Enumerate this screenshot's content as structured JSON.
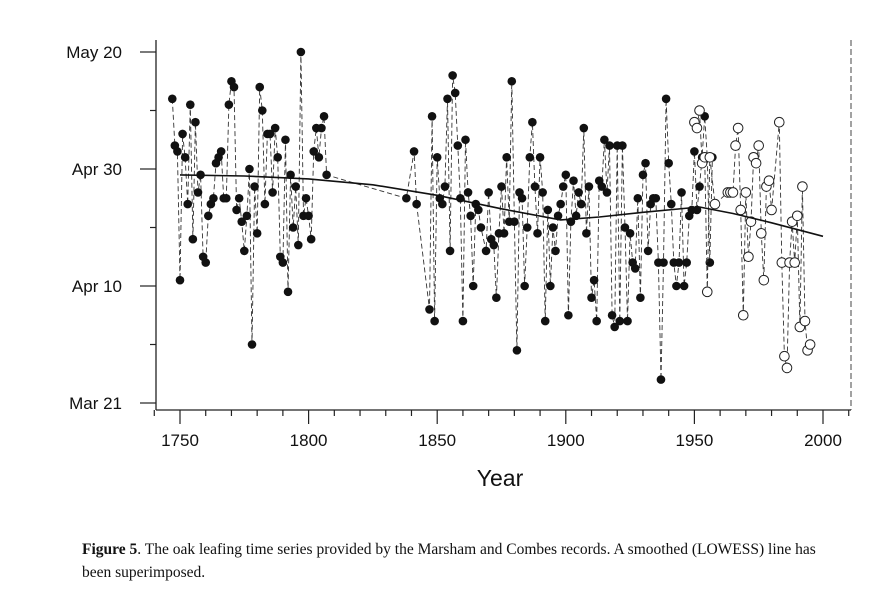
{
  "chart_data": {
    "type": "scatter",
    "title": "",
    "xlabel": "Year",
    "ylabel": "",
    "xlim": [
      1740,
      2010
    ],
    "ylim": [
      80,
      141
    ],
    "y_units": "day of year (Mar 21 = 80, Apr 10 = 100, Apr 30 = 120, May 20 = 140)",
    "x_ticks": [
      1750,
      1800,
      1850,
      1900,
      1950,
      2000
    ],
    "y_ticks": [
      {
        "value": 80,
        "label": "Mar 21"
      },
      {
        "value": 100,
        "label": "Apr 10"
      },
      {
        "value": 120,
        "label": "Apr 30"
      },
      {
        "value": 140,
        "label": "May 20"
      }
    ],
    "grid": false,
    "series": [
      {
        "name": "Marsham",
        "marker": "filled-circle",
        "line": "dashed",
        "points": [
          [
            1747,
            132
          ],
          [
            1748,
            124
          ],
          [
            1749,
            123
          ],
          [
            1750,
            101
          ],
          [
            1751,
            126
          ],
          [
            1752,
            122
          ],
          [
            1753,
            114
          ],
          [
            1754,
            131
          ],
          [
            1755,
            108
          ],
          [
            1756,
            128
          ],
          [
            1757,
            116
          ],
          [
            1758,
            119
          ],
          [
            1759,
            105
          ],
          [
            1760,
            104
          ],
          [
            1761,
            112
          ],
          [
            1762,
            114
          ],
          [
            1763,
            115
          ],
          [
            1764,
            121
          ],
          [
            1765,
            122
          ],
          [
            1766,
            123
          ],
          [
            1767,
            115
          ],
          [
            1768,
            115
          ],
          [
            1769,
            131
          ],
          [
            1770,
            135
          ],
          [
            1771,
            134
          ],
          [
            1772,
            113
          ],
          [
            1773,
            115
          ],
          [
            1774,
            111
          ],
          [
            1775,
            106
          ],
          [
            1776,
            112
          ],
          [
            1777,
            120
          ],
          [
            1778,
            90
          ],
          [
            1779,
            117
          ],
          [
            1780,
            109
          ],
          [
            1781,
            134
          ],
          [
            1782,
            130
          ],
          [
            1783,
            114
          ],
          [
            1784,
            126
          ],
          [
            1785,
            126
          ],
          [
            1786,
            116
          ],
          [
            1787,
            127
          ],
          [
            1788,
            122
          ],
          [
            1789,
            105
          ],
          [
            1790,
            104
          ],
          [
            1791,
            125
          ],
          [
            1792,
            99
          ],
          [
            1793,
            119
          ],
          [
            1794,
            110
          ],
          [
            1795,
            117
          ],
          [
            1796,
            107
          ],
          [
            1797,
            140
          ],
          [
            1798,
            112
          ],
          [
            1799,
            115
          ],
          [
            1800,
            112
          ],
          [
            1801,
            108
          ],
          [
            1802,
            123
          ],
          [
            1803,
            127
          ],
          [
            1804,
            122
          ],
          [
            1805,
            127
          ],
          [
            1806,
            129
          ],
          [
            1807,
            119
          ],
          [
            1838,
            115
          ],
          [
            1841,
            123
          ],
          [
            1842,
            114
          ],
          [
            1847,
            96
          ],
          [
            1848,
            129
          ],
          [
            1849,
            94
          ],
          [
            1850,
            122
          ],
          [
            1851,
            115
          ],
          [
            1852,
            114
          ],
          [
            1853,
            117
          ],
          [
            1854,
            132
          ],
          [
            1855,
            106
          ],
          [
            1856,
            136
          ],
          [
            1857,
            133
          ],
          [
            1858,
            124
          ],
          [
            1859,
            115
          ],
          [
            1860,
            94
          ],
          [
            1861,
            125
          ],
          [
            1862,
            116
          ],
          [
            1863,
            112
          ],
          [
            1864,
            100
          ],
          [
            1865,
            114
          ],
          [
            1866,
            113
          ],
          [
            1867,
            110
          ],
          [
            1869,
            106
          ],
          [
            1870,
            116
          ],
          [
            1871,
            108
          ],
          [
            1872,
            107
          ],
          [
            1873,
            98
          ],
          [
            1874,
            109
          ],
          [
            1875,
            117
          ],
          [
            1876,
            109
          ],
          [
            1877,
            122
          ],
          [
            1878,
            111
          ],
          [
            1879,
            135
          ],
          [
            1880,
            111
          ],
          [
            1881,
            89
          ],
          [
            1882,
            116
          ],
          [
            1883,
            115
          ],
          [
            1884,
            100
          ],
          [
            1885,
            110
          ],
          [
            1886,
            122
          ],
          [
            1887,
            128
          ],
          [
            1888,
            117
          ],
          [
            1889,
            109
          ],
          [
            1890,
            122
          ],
          [
            1891,
            116
          ],
          [
            1892,
            94
          ],
          [
            1893,
            113
          ],
          [
            1894,
            100
          ],
          [
            1895,
            110
          ],
          [
            1896,
            106
          ],
          [
            1897,
            112
          ],
          [
            1898,
            114
          ],
          [
            1899,
            117
          ],
          [
            1900,
            119
          ],
          [
            1901,
            95
          ],
          [
            1902,
            111
          ],
          [
            1903,
            118
          ],
          [
            1904,
            112
          ],
          [
            1905,
            116
          ],
          [
            1906,
            114
          ],
          [
            1907,
            127
          ],
          [
            1908,
            109
          ],
          [
            1909,
            117
          ],
          [
            1910,
            98
          ],
          [
            1911,
            101
          ],
          [
            1912,
            94
          ],
          [
            1913,
            118
          ],
          [
            1914,
            117
          ],
          [
            1915,
            125
          ],
          [
            1916,
            116
          ],
          [
            1917,
            124
          ],
          [
            1918,
            95
          ],
          [
            1919,
            93
          ],
          [
            1920,
            124
          ],
          [
            1921,
            94
          ],
          [
            1922,
            124
          ],
          [
            1923,
            110
          ],
          [
            1924,
            94
          ],
          [
            1925,
            109
          ],
          [
            1926,
            104
          ],
          [
            1927,
            103
          ],
          [
            1928,
            115
          ],
          [
            1929,
            98
          ],
          [
            1930,
            119
          ],
          [
            1931,
            121
          ],
          [
            1932,
            106
          ],
          [
            1933,
            114
          ],
          [
            1934,
            115
          ],
          [
            1935,
            115
          ],
          [
            1936,
            104
          ],
          [
            1937,
            84
          ],
          [
            1938,
            104
          ],
          [
            1939,
            132
          ],
          [
            1940,
            121
          ],
          [
            1941,
            114
          ],
          [
            1942,
            104
          ],
          [
            1943,
            100
          ],
          [
            1944,
            104
          ],
          [
            1945,
            116
          ],
          [
            1946,
            100
          ],
          [
            1947,
            104
          ],
          [
            1948,
            112
          ],
          [
            1949,
            113
          ],
          [
            1950,
            123
          ],
          [
            1951,
            113
          ],
          [
            1952,
            117
          ],
          [
            1953,
            122
          ],
          [
            1954,
            129
          ],
          [
            1955,
            122
          ],
          [
            1956,
            104
          ],
          [
            1957,
            122
          ]
        ]
      },
      {
        "name": "Combes",
        "marker": "open-circle",
        "line": "dashed",
        "points": [
          [
            1950,
            128
          ],
          [
            1951,
            127
          ],
          [
            1952,
            130
          ],
          [
            1953,
            121
          ],
          [
            1954,
            122
          ],
          [
            1955,
            99
          ],
          [
            1956,
            122
          ],
          [
            1958,
            114
          ],
          [
            1963,
            116
          ],
          [
            1964,
            116
          ],
          [
            1965,
            116
          ],
          [
            1966,
            124
          ],
          [
            1967,
            127
          ],
          [
            1968,
            113
          ],
          [
            1969,
            95
          ],
          [
            1970,
            116
          ],
          [
            1971,
            105
          ],
          [
            1972,
            111
          ],
          [
            1973,
            122
          ],
          [
            1974,
            121
          ],
          [
            1975,
            124
          ],
          [
            1976,
            109
          ],
          [
            1977,
            101
          ],
          [
            1978,
            117
          ],
          [
            1979,
            118
          ],
          [
            1980,
            113
          ],
          [
            1983,
            128
          ],
          [
            1984,
            104
          ],
          [
            1985,
            88
          ],
          [
            1986,
            86
          ],
          [
            1987,
            104
          ],
          [
            1988,
            111
          ],
          [
            1989,
            104
          ],
          [
            1990,
            112
          ],
          [
            1991,
            93
          ],
          [
            1992,
            117
          ],
          [
            1993,
            94
          ],
          [
            1994,
            89
          ],
          [
            1995,
            90
          ]
        ]
      },
      {
        "name": "LOWESS",
        "marker": "none",
        "line": "solid",
        "points": [
          [
            1750,
            119
          ],
          [
            1775,
            118.8
          ],
          [
            1800,
            118.3
          ],
          [
            1825,
            117.3
          ],
          [
            1850,
            115.5
          ],
          [
            1875,
            113.2
          ],
          [
            1898,
            111.3
          ],
          [
            1913,
            111.8
          ],
          [
            1930,
            112.6
          ],
          [
            1952,
            113.5
          ],
          [
            1965,
            112.4
          ],
          [
            1980,
            110.8
          ],
          [
            2000,
            108.5
          ]
        ]
      }
    ]
  },
  "caption": {
    "label": "Figure 5",
    "text": ". The oak leafing time series provided by the Marsham and Combes records. A smoothed (LOWESS) line has been superimposed."
  }
}
